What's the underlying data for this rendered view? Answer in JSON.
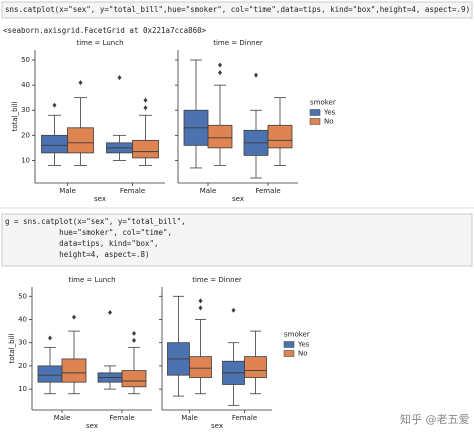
{
  "cells": [
    {
      "code": [
        "sns.catplot(x=\"sex\", y=\"total_bill\",hue=\"smoker\", col=\"time\",data=tips, kind=\"box\",height=4, aspect=.9)"
      ],
      "output": "<seaborn.axisgrid.FacetGrid at 0x221a7cca860>"
    },
    {
      "code": [
        "g = sns.catplot(x=\"sex\", y=\"total_bill\",",
        "            hue=\"smoker\", col=\"time\",",
        "            data=tips, kind=\"box\",",
        "            height=4, aspect=.8)"
      ]
    }
  ],
  "watermark": "知乎 @老五爱",
  "chart_data": [
    {
      "type": "box",
      "title": "time = Lunch",
      "xlabel": "sex",
      "ylabel": "total_bill",
      "categories": [
        "Male",
        "Female"
      ],
      "ylim": [
        1,
        54
      ],
      "yticks": [
        10,
        20,
        30,
        40,
        50
      ],
      "series": [
        {
          "color": "#4c72b0",
          "boxes": [
            {
              "whislo": 8,
              "q1": 13,
              "med": 16,
              "q3": 20,
              "whishi": 28,
              "fliers": [
                32
              ]
            },
            {
              "whislo": 10,
              "q1": 13,
              "med": 15,
              "q3": 17,
              "whishi": 20,
              "fliers": [
                43
              ]
            }
          ]
        },
        {
          "color": "#dd8452",
          "boxes": [
            {
              "whislo": 8,
              "q1": 13,
              "med": 17,
              "q3": 23,
              "whishi": 35,
              "fliers": [
                41
              ]
            },
            {
              "whislo": 8,
              "q1": 11,
              "med": 13.5,
              "q3": 18,
              "whishi": 28,
              "fliers": [
                31,
                34
              ]
            }
          ]
        }
      ]
    },
    {
      "type": "box",
      "title": "time = Dinner",
      "xlabel": "sex",
      "categories": [
        "Male",
        "Female"
      ],
      "ylim": [
        1,
        54
      ],
      "yticks": [
        10,
        20,
        30,
        40,
        50
      ],
      "legend_title": "smoker",
      "series": [
        {
          "name": "Yes",
          "color": "#4c72b0",
          "boxes": [
            {
              "whislo": 7,
              "q1": 16,
              "med": 23,
              "q3": 30,
              "whishi": 50,
              "fliers": []
            },
            {
              "whislo": 3,
              "q1": 12,
              "med": 17,
              "q3": 22,
              "whishi": 30,
              "fliers": [
                44
              ]
            }
          ]
        },
        {
          "name": "No",
          "color": "#dd8452",
          "boxes": [
            {
              "whislo": 8,
              "q1": 15,
              "med": 19,
              "q3": 24,
              "whishi": 40,
              "fliers": [
                45,
                48
              ]
            },
            {
              "whislo": 8,
              "q1": 15,
              "med": 18,
              "q3": 24,
              "whishi": 35,
              "fliers": []
            }
          ]
        }
      ]
    },
    {
      "type": "box",
      "title": "time = Lunch",
      "xlabel": "sex",
      "ylabel": "total_bill",
      "categories": [
        "Male",
        "Female"
      ],
      "ylim": [
        1,
        54
      ],
      "yticks": [
        10,
        20,
        30,
        40,
        50
      ],
      "series": [
        {
          "color": "#4c72b0",
          "boxes": [
            {
              "whislo": 8,
              "q1": 13,
              "med": 16,
              "q3": 20,
              "whishi": 28,
              "fliers": [
                32
              ]
            },
            {
              "whislo": 10,
              "q1": 13,
              "med": 15,
              "q3": 17,
              "whishi": 20,
              "fliers": [
                43
              ]
            }
          ]
        },
        {
          "color": "#dd8452",
          "boxes": [
            {
              "whislo": 8,
              "q1": 13,
              "med": 17,
              "q3": 23,
              "whishi": 35,
              "fliers": [
                41
              ]
            },
            {
              "whislo": 8,
              "q1": 11,
              "med": 13.5,
              "q3": 18,
              "whishi": 28,
              "fliers": [
                31,
                34
              ]
            }
          ]
        }
      ]
    },
    {
      "type": "box",
      "title": "time = Dinner",
      "xlabel": "sex",
      "categories": [
        "Male",
        "Female"
      ],
      "ylim": [
        1,
        54
      ],
      "yticks": [
        10,
        20,
        30,
        40,
        50
      ],
      "legend_title": "smoker",
      "series": [
        {
          "name": "Yes",
          "color": "#4c72b0",
          "boxes": [
            {
              "whislo": 7,
              "q1": 16,
              "med": 23,
              "q3": 30,
              "whishi": 50,
              "fliers": []
            },
            {
              "whislo": 3,
              "q1": 12,
              "med": 17,
              "q3": 22,
              "whishi": 30,
              "fliers": [
                44
              ]
            }
          ]
        },
        {
          "name": "No",
          "color": "#dd8452",
          "boxes": [
            {
              "whislo": 8,
              "q1": 15,
              "med": 19,
              "q3": 24,
              "whishi": 40,
              "fliers": [
                45,
                48
              ]
            },
            {
              "whislo": 8,
              "q1": 15,
              "med": 18,
              "q3": 24,
              "whishi": 35,
              "fliers": []
            }
          ]
        }
      ]
    }
  ]
}
